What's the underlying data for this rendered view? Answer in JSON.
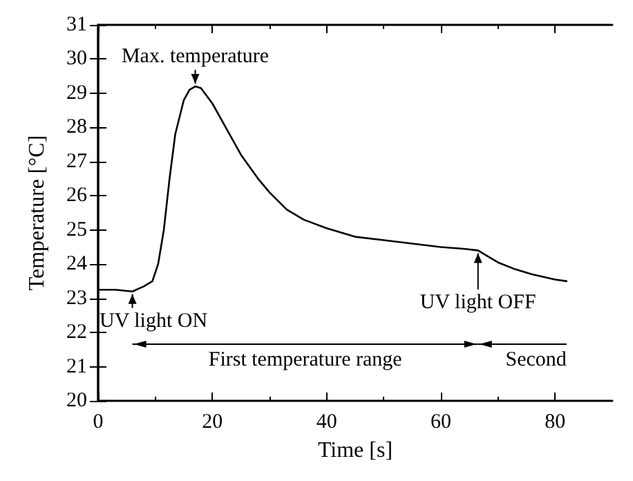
{
  "chart_data": {
    "type": "line",
    "xlabel": "Time [s]",
    "ylabel": "Temperature [°C]",
    "xlim": [
      0,
      90
    ],
    "xticks": [
      0,
      20,
      40,
      60,
      80
    ],
    "ylim": [
      20,
      31
    ],
    "yticks": [
      20,
      21,
      22,
      23,
      24,
      25,
      26,
      27,
      28,
      29,
      30,
      31
    ],
    "grid": false,
    "marker": "none",
    "line_style": "solid",
    "series": [
      {
        "color": "#000000",
        "x": [
          0,
          3,
          6,
          8,
          9.5,
          10.5,
          11.5,
          12.5,
          13.5,
          15,
          16,
          17,
          18,
          20,
          22,
          25,
          28,
          30,
          33,
          36,
          40,
          45,
          50,
          55,
          60,
          64,
          66.5,
          68,
          70,
          73,
          76,
          80,
          82
        ],
        "values": [
          23.25,
          23.25,
          23.2,
          23.35,
          23.5,
          24,
          25,
          26.5,
          27.8,
          28.8,
          29.1,
          29.2,
          29.15,
          28.7,
          28.1,
          27.2,
          26.5,
          26.1,
          25.6,
          25.3,
          25.05,
          24.8,
          24.7,
          24.6,
          24.5,
          24.45,
          24.4,
          24.25,
          24.05,
          23.85,
          23.7,
          23.55,
          23.5
        ]
      }
    ],
    "annotations": [
      {
        "text": "Max. temperature",
        "x": 17,
        "y": 29.2
      },
      {
        "text": "UV light ON",
        "x": 6,
        "y": 23.2
      },
      {
        "text": "UV light OFF",
        "x": 66.5,
        "y": 24.4
      },
      "First temperature range",
      "Second"
    ]
  }
}
